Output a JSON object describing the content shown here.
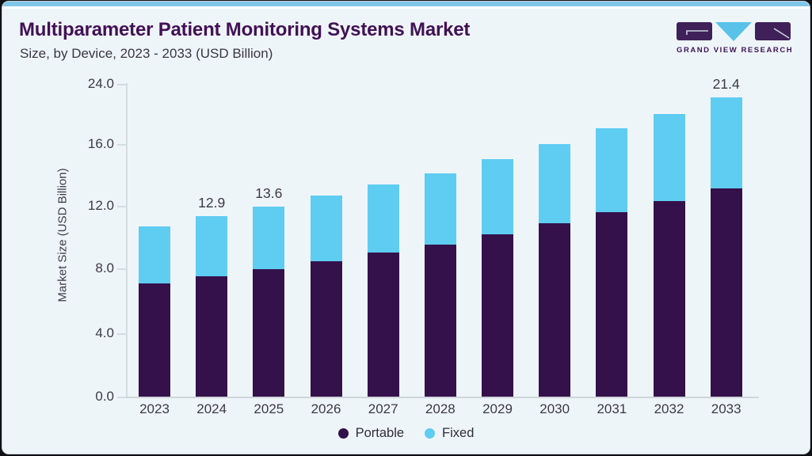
{
  "header": {
    "title": "Multiparameter Patient Monitoring Systems Market",
    "subtitle": "Size, by Device, 2023 - 2033 (USD Billion)"
  },
  "logo": {
    "text": "GRAND VIEW RESEARCH"
  },
  "chart_data": {
    "type": "bar",
    "stacked": true,
    "title": "Multiparameter Patient Monitoring Systems Market Size, by Device, 2023 - 2033 (USD Billion)",
    "ylabel": "Market Size (USD Billion)",
    "xlabel": "",
    "categories": [
      "2023",
      "2024",
      "2025",
      "2026",
      "2027",
      "2028",
      "2029",
      "2030",
      "2031",
      "2032",
      "2033"
    ],
    "series": [
      {
        "name": "Portable",
        "color": "#34114a",
        "values": [
          8.1,
          8.6,
          9.1,
          9.7,
          10.3,
          10.9,
          11.6,
          12.4,
          13.2,
          14.0,
          14.9
        ]
      },
      {
        "name": "Fixed",
        "color": "#5fccf2",
        "values": [
          4.1,
          4.3,
          4.5,
          4.7,
          4.9,
          5.1,
          5.4,
          5.7,
          6.0,
          6.2,
          6.5
        ]
      }
    ],
    "totals": [
      12.2,
      12.9,
      13.6,
      14.4,
      15.2,
      16.0,
      17.0,
      18.1,
      19.2,
      20.2,
      21.4
    ],
    "value_labels": {
      "2024": "12.9",
      "2025": "13.6",
      "2033": "21.4"
    },
    "y_ticks": [
      "0.0",
      "4.0",
      "8.0",
      "12.0",
      "16.0",
      "24.0"
    ],
    "grid": false,
    "legend_position": "bottom"
  },
  "legend": {
    "items": [
      {
        "label": "Portable",
        "color": "#34114a"
      },
      {
        "label": "Fixed",
        "color": "#5fccf2"
      }
    ]
  },
  "colors": {
    "top_accent_bar": "#7ec7e9",
    "title_text": "#421155",
    "body_text": "#3c3945",
    "axis_line": "#d6dbe0",
    "card_background": "#eef5f9",
    "logo_purple": "#3f2058",
    "logo_blue": "#58c2e9"
  }
}
